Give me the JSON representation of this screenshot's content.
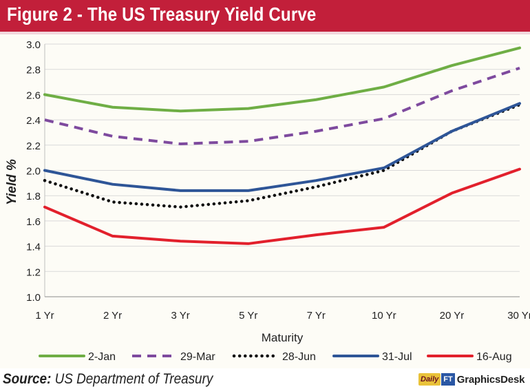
{
  "header": {
    "title": "Figure 2 - The US Treasury Yield Curve"
  },
  "footer": {
    "source_key": "Source:",
    "source_value": "US Department of Treasury",
    "brand_badge": "Daily",
    "brand_badge2": "FT",
    "brand_name": "GraphicsDesk"
  },
  "colors": {
    "header_bg": "#c21f3a",
    "plot_bg": "#fdfcf6",
    "grid": "#d9d9d9"
  },
  "chart_data": {
    "type": "line",
    "title": "Figure 2 - The US Treasury Yield Curve",
    "xlabel": "Maturity",
    "ylabel": "Yield %",
    "categories": [
      "1 Yr",
      "2 Yr",
      "3 Yr",
      "5 Yr",
      "7 Yr",
      "10 Yr",
      "20 Yr",
      "30 Yr"
    ],
    "ylim": [
      1.0,
      3.0
    ],
    "yticks": [
      "1.0",
      "1.2",
      "1.4",
      "1.6",
      "1.8",
      "2.0",
      "2.2",
      "2.4",
      "2.6",
      "2.8",
      "3.0"
    ],
    "grid": true,
    "legend_position": "bottom",
    "series": [
      {
        "name": "2-Jan",
        "color": "#6fae45",
        "style": "solid",
        "values": [
          2.6,
          2.5,
          2.47,
          2.49,
          2.56,
          2.66,
          2.83,
          2.97
        ]
      },
      {
        "name": "29-Mar",
        "color": "#7e4a9e",
        "style": "dashed",
        "values": [
          2.4,
          2.27,
          2.21,
          2.23,
          2.31,
          2.41,
          2.63,
          2.81
        ]
      },
      {
        "name": "28-Jun",
        "color": "#111111",
        "style": "dotted",
        "values": [
          1.92,
          1.75,
          1.71,
          1.76,
          1.87,
          2.0,
          2.31,
          2.52
        ]
      },
      {
        "name": "31-Jul",
        "color": "#2e5597",
        "style": "solid",
        "values": [
          2.0,
          1.89,
          1.84,
          1.84,
          1.92,
          2.02,
          2.31,
          2.53
        ]
      },
      {
        "name": "16-Aug",
        "color": "#e2202c",
        "style": "solid",
        "values": [
          1.71,
          1.48,
          1.44,
          1.42,
          1.49,
          1.55,
          1.82,
          2.01
        ]
      }
    ]
  }
}
